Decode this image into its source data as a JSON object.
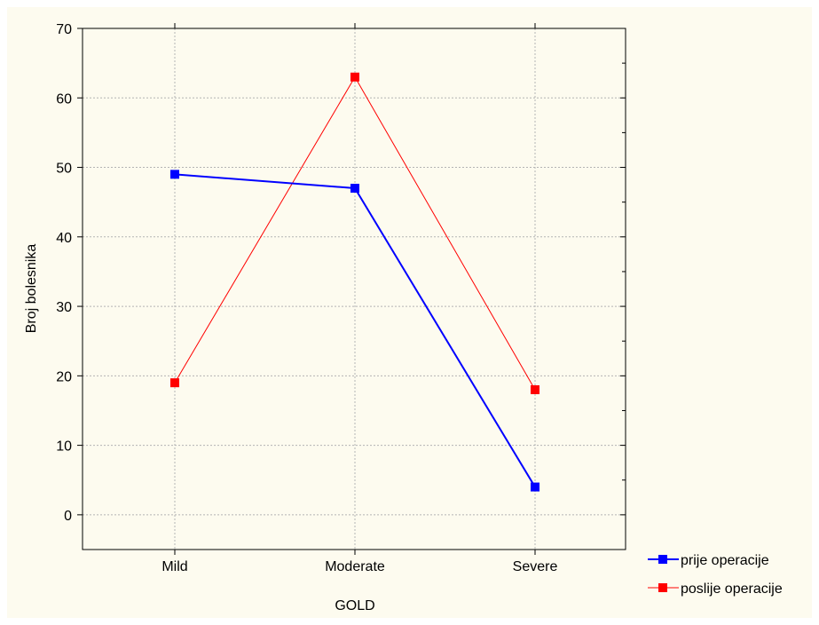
{
  "chart_data": {
    "type": "line",
    "categories": [
      "Mild",
      "Moderate",
      "Severe"
    ],
    "series": [
      {
        "name": "prije operacije",
        "values": [
          49,
          47,
          4
        ],
        "color": "#0000ff"
      },
      {
        "name": "poslije operacije",
        "values": [
          19,
          63,
          18
        ],
        "color": "#ff0000"
      }
    ],
    "xlabel": "GOLD",
    "ylabel": "Broj bolesnika",
    "ylim": [
      -5,
      70
    ],
    "yticks": [
      0,
      10,
      20,
      30,
      40,
      50,
      60,
      70
    ],
    "grid": true,
    "legend_position": "bottom-right"
  }
}
